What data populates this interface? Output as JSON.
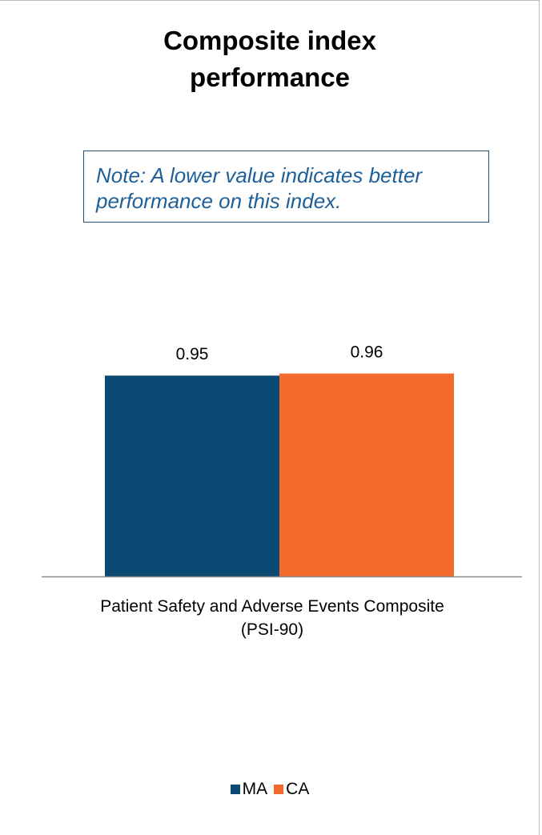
{
  "chart_data": {
    "type": "bar",
    "title": "Composite index performance",
    "title_lines": [
      "Composite index",
      "performance"
    ],
    "note_lines": [
      "Note: A lower value indicates better",
      "performance on this index."
    ],
    "categories": [
      "Patient Safety and Adverse Events Composite (PSI-90)"
    ],
    "category_label_lines": [
      "Patient Safety and Adverse Events Composite",
      "(PSI-90)"
    ],
    "series": [
      {
        "name": "MA",
        "values": [
          0.95
        ],
        "color": "#0b4a73",
        "label": "0.95"
      },
      {
        "name": "CA",
        "values": [
          0.96
        ],
        "color": "#f26b2d",
        "label": "0.96"
      }
    ],
    "ylim": [
      0,
      1.0
    ],
    "grid": false,
    "legend_position": "bottom"
  }
}
